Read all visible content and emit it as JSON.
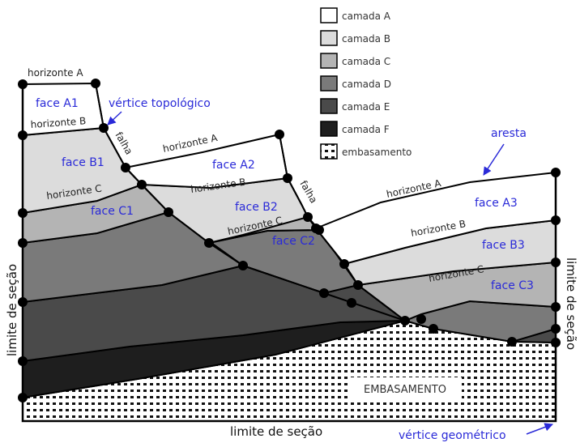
{
  "legend": [
    {
      "label": "camada A",
      "color": "#ffffff"
    },
    {
      "label": "camada B",
      "color": "#dcdcdc"
    },
    {
      "label": "camada C",
      "color": "#b4b4b4"
    },
    {
      "label": "camada D",
      "color": "#7a7a7a"
    },
    {
      "label": "camada E",
      "color": "#4a4a4a"
    },
    {
      "label": "camada F",
      "color": "#1e1e1e"
    },
    {
      "label": "embasamento",
      "color": "pattern"
    }
  ],
  "horizons": {
    "a_left": "horizonte A",
    "b_left": "horizonte B",
    "c_left": "horizonte C",
    "a_mid": "horizonte A",
    "b_mid": "horizonte B",
    "c_mid": "horizonte C",
    "a_right": "horizonte A",
    "b_right": "horizonte B",
    "c_right": "horizonte C"
  },
  "faults": {
    "left": "falha",
    "mid": "falha"
  },
  "faces": {
    "a1": "face  A1",
    "b1": "face  B1",
    "c1": "face  C1",
    "a2": "face  A2",
    "b2": "face  B2",
    "c2": "face  C2",
    "a3": "face  A3",
    "b3": "face  B3",
    "c3": "face  C3"
  },
  "annotations": {
    "vertice_topologico": "vértice topológico",
    "aresta": "aresta",
    "vertice_geometrico": "vértice geométrico"
  },
  "limits": {
    "left": "limite de seção",
    "right": "limite de seção",
    "bottom": "limite de seção"
  },
  "embasamento": "EMBASAMENTO"
}
